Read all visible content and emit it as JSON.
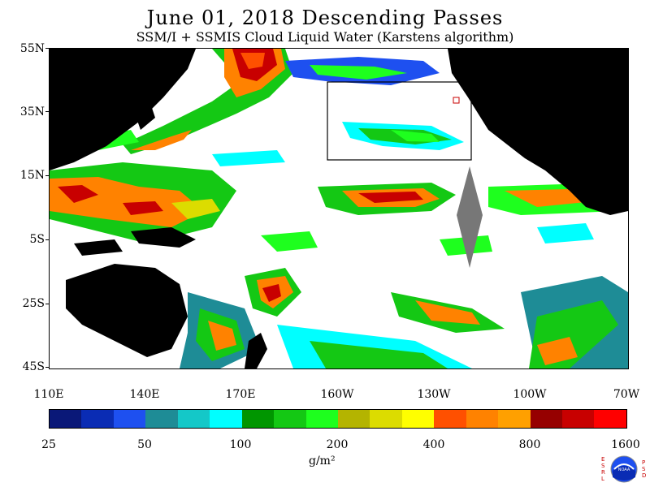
{
  "title": "June 01, 2018  Descending Passes",
  "subtitle": "SSM/I + SSMIS Cloud Liquid Water (Karstens algorithm)",
  "lat_labels": [
    "55N",
    "35N",
    "15N",
    "5S",
    "25S",
    "45S"
  ],
  "lon_labels": [
    "110E",
    "140E",
    "170E",
    "160W",
    "130W",
    "100W",
    "70W"
  ],
  "colorbar": {
    "colors": [
      "#0a1878",
      "#0a2cb4",
      "#1e50f0",
      "#1e8c96",
      "#14c8c8",
      "#00ffff",
      "#009600",
      "#14c814",
      "#1eff1e",
      "#b4b400",
      "#dcdc00",
      "#ffff00",
      "#ff5000",
      "#ff8200",
      "#ffa000",
      "#960000",
      "#c80000",
      "#ff0000"
    ],
    "labels": [
      "25",
      "50",
      "100",
      "200",
      "400",
      "800",
      "1600"
    ],
    "units": "g/m²"
  },
  "logo": {
    "left_letters": "ESRL",
    "right_letters": "PSD",
    "center": "NOAA"
  },
  "colors": {
    "land": "#000000",
    "no_data": "#777777",
    "clear": "#ffffff",
    "box": "#000000"
  }
}
